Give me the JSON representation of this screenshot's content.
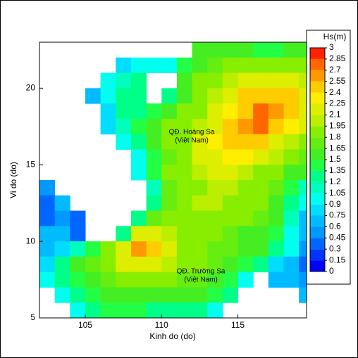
{
  "chart_data": {
    "type": "heatmap",
    "xlabel": "Kinh do (do)",
    "ylabel": "Vi do (do)",
    "xlim": [
      102,
      119.5
    ],
    "ylim": [
      5,
      23
    ],
    "xticks": [
      105,
      110,
      115
    ],
    "yticks": [
      5,
      10,
      15,
      20
    ],
    "x": [
      102,
      103,
      104,
      105,
      106,
      107,
      108,
      109,
      110,
      111,
      112,
      113,
      114,
      115,
      116,
      117,
      118,
      119
    ],
    "y": [
      22,
      21,
      20,
      19,
      18,
      17,
      16,
      15,
      14,
      13,
      12,
      11,
      10,
      9,
      8,
      7,
      6,
      5
    ],
    "values": [
      [
        null,
        null,
        null,
        null,
        null,
        null,
        null,
        null,
        null,
        null,
        1.5,
        1.6,
        1.6,
        1.5,
        1.4,
        1.4,
        1.5,
        1.5
      ],
      [
        null,
        null,
        null,
        null,
        null,
        0.8,
        0.9,
        0.9,
        1.0,
        1.4,
        1.6,
        1.7,
        1.8,
        1.8,
        1.8,
        1.8,
        1.8,
        1.8
      ],
      [
        null,
        null,
        null,
        null,
        0.9,
        1.1,
        1.2,
        null,
        null,
        1.5,
        1.8,
        1.9,
        2.0,
        2.1,
        2.2,
        2.2,
        2.1,
        2.0
      ],
      [
        null,
        null,
        null,
        0.7,
        1.0,
        1.2,
        1.2,
        null,
        1.2,
        1.6,
        1.9,
        2.0,
        2.2,
        2.4,
        2.5,
        2.5,
        2.4,
        2.2
      ],
      [
        null,
        null,
        null,
        null,
        0.8,
        1.2,
        1.3,
        1.4,
        1.6,
        1.8,
        1.9,
        2.1,
        2.3,
        2.5,
        2.7,
        2.6,
        2.4,
        2.2
      ],
      [
        null,
        null,
        null,
        null,
        0.8,
        1.1,
        1.4,
        1.6,
        1.8,
        1.9,
        2.0,
        2.2,
        2.4,
        2.6,
        2.7,
        2.5,
        2.3,
        2.1
      ],
      [
        null,
        null,
        null,
        null,
        null,
        0.9,
        1.3,
        1.6,
        1.8,
        1.9,
        2.1,
        2.3,
        2.4,
        2.5,
        2.4,
        2.2,
        2.0,
        1.9
      ],
      [
        null,
        null,
        null,
        null,
        null,
        null,
        0.9,
        1.4,
        1.7,
        1.9,
        2.1,
        2.2,
        2.3,
        2.3,
        2.1,
        2.0,
        1.8,
        1.7
      ],
      [
        null,
        null,
        null,
        null,
        null,
        null,
        0.9,
        1.4,
        1.8,
        1.9,
        2.0,
        2.1,
        2.1,
        2.0,
        1.9,
        1.8,
        1.6,
        1.5
      ],
      [
        0.5,
        null,
        null,
        null,
        null,
        null,
        null,
        1.1,
        1.7,
        1.9,
        1.9,
        2.0,
        2.0,
        1.9,
        1.8,
        1.7,
        1.4,
        1.1
      ],
      [
        0.4,
        0.6,
        null,
        null,
        null,
        null,
        null,
        1.2,
        1.7,
        1.9,
        2.0,
        2.0,
        1.9,
        1.9,
        1.8,
        1.6,
        1.3,
        0.9
      ],
      [
        0.4,
        0.5,
        0.4,
        null,
        null,
        null,
        1.3,
        1.7,
        1.9,
        1.9,
        1.9,
        1.9,
        1.8,
        1.8,
        1.7,
        1.5,
        1.1,
        0.7
      ],
      [
        0.6,
        0.6,
        0.4,
        null,
        null,
        1.3,
        2.2,
        2.2,
        2.0,
        1.9,
        1.8,
        1.8,
        1.7,
        1.6,
        1.6,
        1.4,
        1.0,
        0.6
      ],
      [
        0.7,
        0.8,
        1.1,
        1.4,
        1.8,
        2.2,
        2.6,
        2.4,
        2.1,
        1.9,
        1.8,
        1.7,
        1.7,
        1.6,
        1.5,
        1.3,
        0.9,
        0.5
      ],
      [
        0.8,
        1.2,
        1.5,
        1.7,
        1.9,
        2.1,
        2.2,
        2.1,
        2.0,
        1.9,
        1.8,
        1.7,
        1.6,
        1.4,
        1.2,
        0.8,
        0.6,
        0.4
      ],
      [
        0.9,
        1.2,
        1.4,
        1.6,
        1.7,
        1.8,
        1.8,
        1.8,
        1.8,
        1.7,
        1.7,
        1.6,
        1.4,
        1.0,
        null,
        0.6,
        0.7,
        0.5
      ],
      [
        null,
        0.9,
        1.2,
        1.4,
        1.5,
        1.6,
        1.6,
        1.6,
        1.6,
        1.6,
        1.5,
        1.4,
        1.2,
        null,
        null,
        null,
        null,
        0.6
      ],
      [
        null,
        null,
        1.0,
        1.3,
        1.4,
        1.4,
        1.4,
        1.3,
        1.3,
        1.3,
        1.2,
        1.0,
        null,
        null,
        null,
        null,
        null,
        null
      ]
    ],
    "colorbar": {
      "title": "Hs(m)",
      "ticks": [
        0,
        0.15,
        0.3,
        0.45,
        0.6,
        0.75,
        0.9,
        1.05,
        1.2,
        1.35,
        1.5,
        1.65,
        1.8,
        1.95,
        2.1,
        2.25,
        2.4,
        2.55,
        2.7,
        2.85,
        3
      ],
      "colors": [
        "#0000ff",
        "#0033ff",
        "#0066ff",
        "#0099ff",
        "#00bbff",
        "#00ddff",
        "#00ffee",
        "#00ffbb",
        "#00ff88",
        "#22ff44",
        "#44ee22",
        "#66ee11",
        "#88ee00",
        "#bbee00",
        "#ddee00",
        "#ffee00",
        "#ffcc00",
        "#ff9900",
        "#ff6600",
        "#ff2200"
      ]
    },
    "annotations": [
      "QĐ. Hoàng Sa",
      "(Việt Nam)",
      "QĐ. Trường Sa",
      "(Việt Nam)"
    ]
  }
}
